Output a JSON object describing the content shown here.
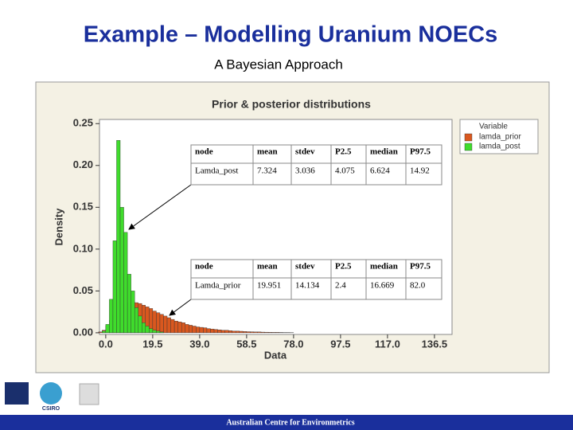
{
  "title": "Example – Modelling Uranium NOECs",
  "subtitle": "A Bayesian Approach",
  "chart_data": {
    "type": "histogram",
    "title": "Prior & posterior distributions",
    "x_label": "Data",
    "y_label": "Density",
    "legend_title": "Variable",
    "legend": "top-right",
    "bins": [
      -3,
      -1.5,
      0,
      1.5,
      3,
      4.5,
      6,
      7.5,
      9,
      10.5,
      12,
      13.5,
      15,
      16.5,
      18,
      19.5,
      21,
      22.5,
      24,
      25.5,
      27,
      28.5,
      30,
      31.5,
      33,
      34.5,
      36,
      37.5,
      39,
      40.5,
      42,
      43.5,
      45,
      46.5,
      48,
      49.5,
      51,
      52.5,
      54,
      55.5,
      57,
      58.5,
      60,
      61.5,
      63,
      64.5,
      66,
      67.5,
      69,
      70.5,
      72,
      73.5,
      75,
      76.5,
      78
    ],
    "series": [
      {
        "name": "lamda_prior",
        "color": "#d9581f",
        "values": [
          0.001,
          0.003,
          0.008,
          0.015,
          0.022,
          0.028,
          0.032,
          0.035,
          0.036,
          0.037,
          0.036,
          0.035,
          0.033,
          0.031,
          0.029,
          0.026,
          0.024,
          0.022,
          0.02,
          0.018,
          0.016,
          0.014,
          0.013,
          0.012,
          0.01,
          0.009,
          0.008,
          0.007,
          0.0065,
          0.006,
          0.005,
          0.0045,
          0.004,
          0.0035,
          0.003,
          0.003,
          0.0025,
          0.002,
          0.002,
          0.0018,
          0.0015,
          0.0013,
          0.0012,
          0.001,
          0.001,
          0.0008,
          0.0007,
          0.0006,
          0.0005,
          0.0005,
          0.0004,
          0.0003,
          0.0003,
          0.0002
        ]
      },
      {
        "name": "lamda_post",
        "color": "#3fdc2c",
        "values": [
          0,
          0.002,
          0.01,
          0.04,
          0.11,
          0.23,
          0.15,
          0.12,
          0.07,
          0.05,
          0.03,
          0.02,
          0.012,
          0.008,
          0.005,
          0.003,
          0.002,
          0.001,
          0,
          0,
          0,
          0,
          0,
          0,
          0,
          0,
          0,
          0,
          0,
          0,
          0,
          0,
          0,
          0,
          0,
          0,
          0,
          0,
          0,
          0,
          0,
          0,
          0,
          0,
          0,
          0,
          0,
          0,
          0,
          0,
          0,
          0,
          0,
          0
        ]
      }
    ],
    "xlim": [
      -2.6,
      143.8
    ],
    "xticks": [
      {
        "value": 0,
        "label": "0.0"
      },
      19.5,
      {
        "value": 39,
        "label": "39.0"
      },
      58.5,
      {
        "value": 78,
        "label": "78.0"
      },
      97.5,
      {
        "value": 117,
        "label": "117.0"
      },
      136.5
    ],
    "ylim": [
      -0.002,
      0.255
    ],
    "yticks": [
      {
        "value": 0,
        "label": "0.00"
      },
      {
        "value": 0.05,
        "label": "0.05"
      },
      {
        "value": 0.1,
        "label": "0.10"
      },
      {
        "value": 0.15,
        "label": "0.15"
      },
      {
        "value": 0.2,
        "label": "0.20"
      },
      {
        "value": 0.25,
        "label": "0.25"
      }
    ]
  },
  "tables": [
    {
      "header": [
        "node",
        "mean",
        "stdev",
        "P2.5",
        "median",
        "P97.5"
      ],
      "row": [
        "Lamda_post",
        "7.324",
        "3.036",
        "4.075",
        "6.624",
        "14.92"
      ]
    },
    {
      "header": [
        "node",
        "mean",
        "stdev",
        "P2.5",
        "median",
        "P97.5"
      ],
      "row": [
        "Lamda_prior",
        "19.951",
        "14.134",
        "2.4",
        "16.669",
        "82.0"
      ]
    }
  ],
  "logos": [
    "CSIRO"
  ],
  "footer": "Australian Centre for Environmetrics"
}
